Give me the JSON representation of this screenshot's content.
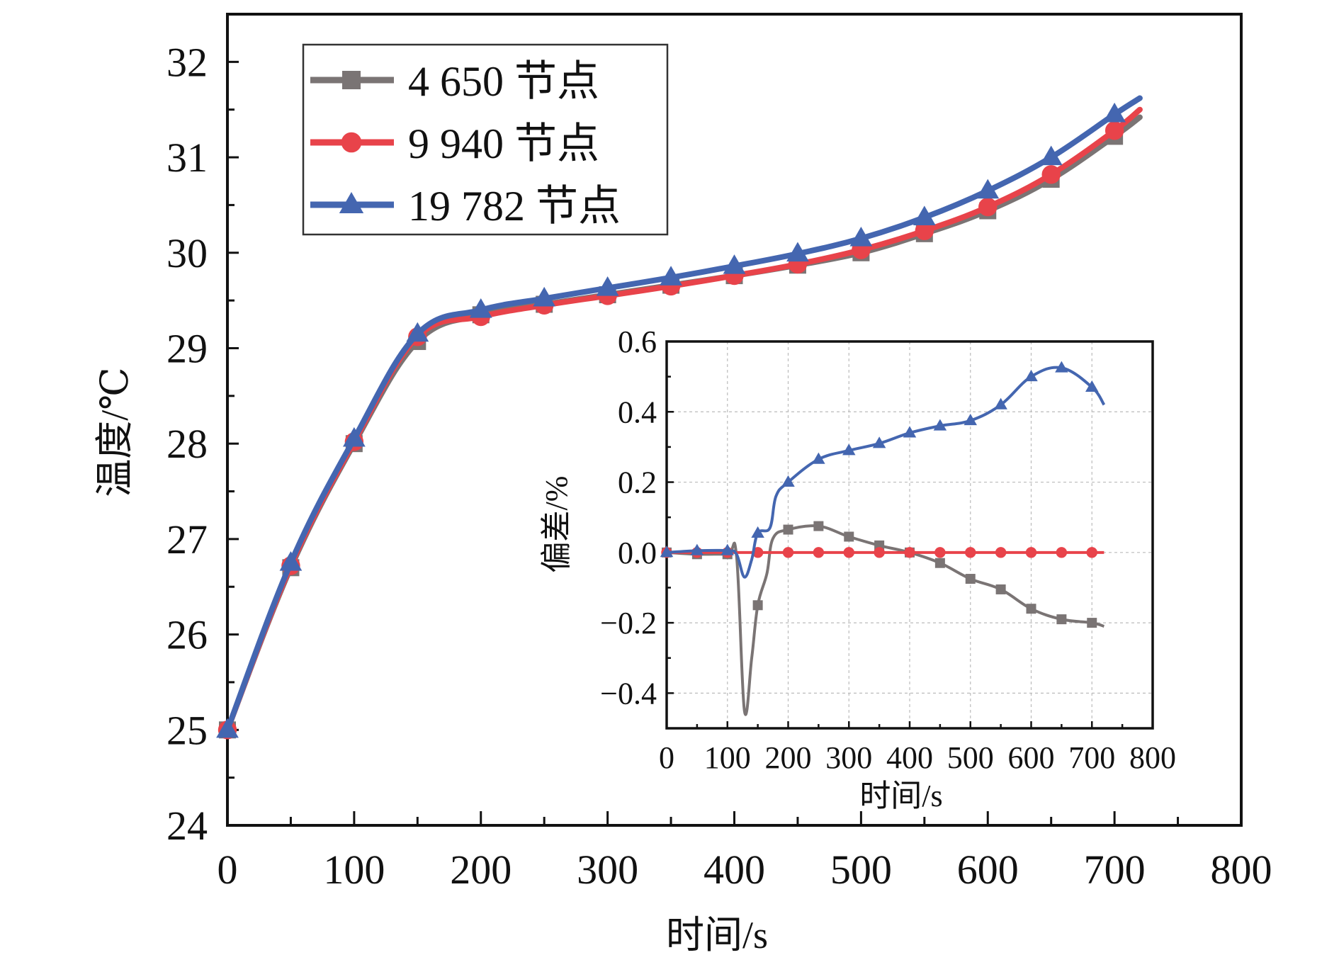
{
  "chart_data": [
    {
      "type": "line",
      "title": "",
      "xlabel": "时间/s",
      "ylabel": "温度/℃",
      "xlim": [
        0,
        800
      ],
      "ylim": [
        24,
        32.5
      ],
      "xticks": [
        "0",
        "100",
        "200",
        "300",
        "400",
        "500",
        "600",
        "700",
        "800"
      ],
      "yticks": [
        "24",
        "25",
        "26",
        "27",
        "28",
        "29",
        "30",
        "31",
        "32"
      ],
      "grid": false,
      "legend_position": "top-left",
      "x": [
        0,
        50,
        100,
        150,
        200,
        250,
        300,
        350,
        400,
        450,
        500,
        550,
        600,
        650,
        700,
        720
      ],
      "series": [
        {
          "name": "4 650 节点",
          "color": "#7a7474",
          "marker": "square",
          "values": [
            25.0,
            26.7,
            28.0,
            29.07,
            29.35,
            29.46,
            29.56,
            29.66,
            29.76,
            29.87,
            30.0,
            30.2,
            30.44,
            30.77,
            31.22,
            31.42
          ]
        },
        {
          "name": "9 940 节点",
          "color": "#e8434a",
          "marker": "circle",
          "values": [
            25.0,
            26.72,
            28.02,
            29.12,
            29.33,
            29.45,
            29.55,
            29.65,
            29.76,
            29.88,
            30.03,
            30.23,
            30.48,
            30.82,
            31.28,
            31.5
          ]
        },
        {
          "name": "19 782 节点",
          "color": "#4466b0",
          "marker": "triangle",
          "values": [
            25.0,
            26.75,
            28.05,
            29.15,
            29.4,
            29.52,
            29.63,
            29.74,
            29.86,
            29.99,
            30.15,
            30.37,
            30.65,
            31.0,
            31.45,
            31.62
          ]
        }
      ]
    },
    {
      "type": "line",
      "title": "",
      "xlabel": "时间/s",
      "ylabel": "偏差/%",
      "xlim": [
        0,
        800
      ],
      "ylim": [
        -0.5,
        0.6
      ],
      "xticks": [
        "0",
        "100",
        "200",
        "300",
        "400",
        "500",
        "600",
        "700",
        "800"
      ],
      "yticks": [
        "−0.4",
        "−0.2",
        "0.0",
        "0.2",
        "0.4",
        "0.6"
      ],
      "grid": true,
      "x": [
        0,
        50,
        100,
        150,
        200,
        250,
        300,
        350,
        400,
        450,
        500,
        550,
        600,
        650,
        700,
        720
      ],
      "series": [
        {
          "name": "4 650 节点",
          "color": "#7a7474",
          "marker": "square",
          "values": [
            0,
            -0.005,
            -0.005,
            -0.15,
            0.065,
            0.075,
            0.045,
            0.02,
            0,
            -0.03,
            -0.075,
            -0.105,
            -0.16,
            -0.19,
            -0.2,
            -0.21
          ],
          "dip": {
            "x": 128,
            "y": -0.45
          }
        },
        {
          "name": "9 940 节点",
          "color": "#e8434a",
          "marker": "circle",
          "values": [
            0,
            0,
            0,
            0,
            0,
            0,
            0,
            0,
            0,
            0,
            0,
            0,
            0,
            0,
            0,
            0
          ]
        },
        {
          "name": "19 782 节点",
          "color": "#4466b0",
          "marker": "triangle",
          "values": [
            0,
            0.005,
            0.005,
            0.055,
            0.2,
            0.265,
            0.29,
            0.31,
            0.34,
            0.36,
            0.375,
            0.42,
            0.5,
            0.525,
            0.47,
            0.42
          ],
          "dip": {
            "x": 128,
            "y": -0.07
          }
        }
      ]
    }
  ]
}
